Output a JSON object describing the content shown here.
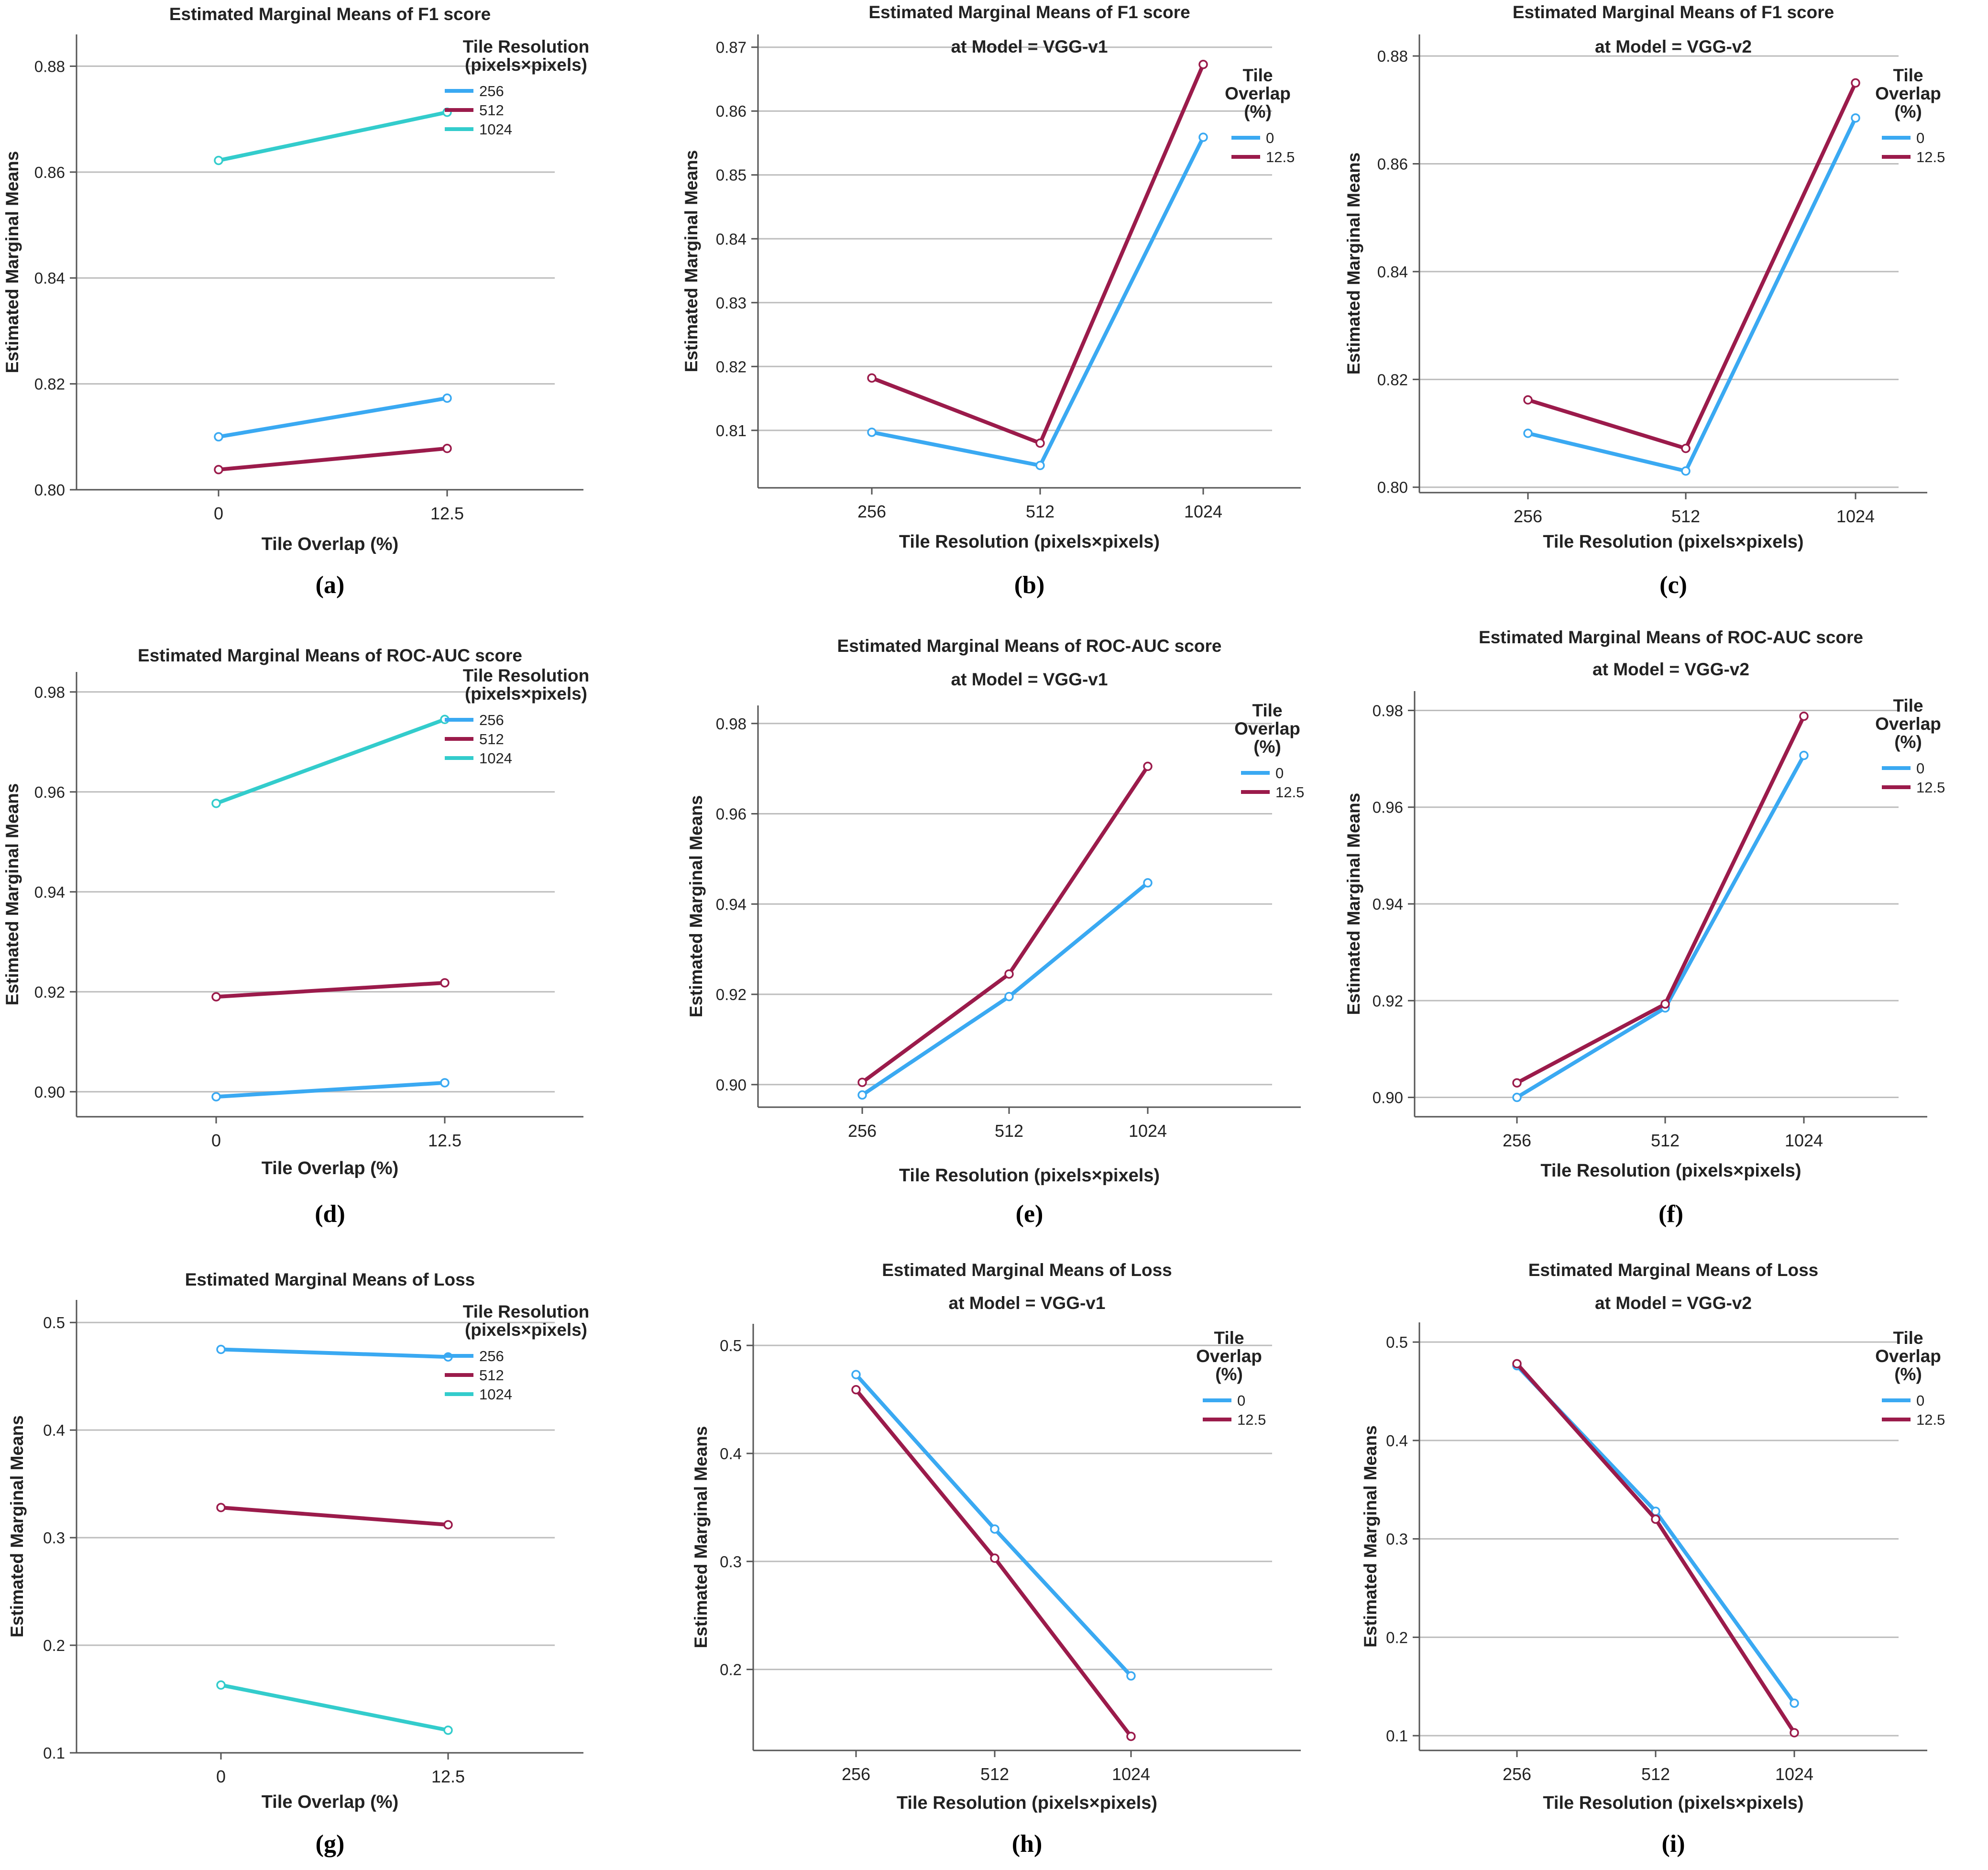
{
  "colors": {
    "blue": "#3aa9f2",
    "crimson": "#9b1b4b",
    "teal": "#33cccc",
    "grid": "#bdbdbd",
    "axis": "#555555",
    "text": "#222222"
  },
  "chart_data": [
    {
      "id": "a",
      "caption": "(a)",
      "type": "line",
      "title": [
        "Estimated Marginal Means of F1 score"
      ],
      "xlabel": "Tile Overlap (%)",
      "ylabel": "Estimated Marginal Means",
      "categories": [
        "0",
        "12.5"
      ],
      "ylim": [
        0.8,
        0.886
      ],
      "yticks": [
        0.8,
        0.82,
        0.84,
        0.86,
        0.88
      ],
      "tickfmt": 2,
      "legend_title": [
        "Tile Resolution",
        "(pixels×pixels)"
      ],
      "series": [
        {
          "name": "256",
          "color": "blue",
          "values": [
            0.81,
            0.8173
          ]
        },
        {
          "name": "512",
          "color": "crimson",
          "values": [
            0.8038,
            0.8078
          ]
        },
        {
          "name": "1024",
          "color": "teal",
          "values": [
            0.8622,
            0.8713
          ]
        }
      ]
    },
    {
      "id": "b",
      "caption": "(b)",
      "type": "line",
      "title": [
        "Estimated Marginal Means of F1 score",
        "at Model = VGG-v1"
      ],
      "xlabel": "Tile Resolution (pixels×pixels)",
      "ylabel": "Estimated Marginal Means",
      "categories": [
        "256",
        "512",
        "1024"
      ],
      "ylim": [
        0.801,
        0.872
      ],
      "yticks": [
        0.81,
        0.82,
        0.83,
        0.84,
        0.85,
        0.86,
        0.87
      ],
      "tickfmt": 2,
      "legend_title": [
        "Tile",
        "Overlap",
        "(%)"
      ],
      "series": [
        {
          "name": "0",
          "color": "blue",
          "values": [
            0.8097,
            0.8045,
            0.8559
          ]
        },
        {
          "name": "12.5",
          "color": "crimson",
          "values": [
            0.8182,
            0.808,
            0.8673
          ]
        }
      ]
    },
    {
      "id": "c",
      "caption": "(c)",
      "type": "line",
      "title": [
        "Estimated Marginal Means of F1 score",
        "at Model = VGG-v2"
      ],
      "xlabel": "Tile Resolution (pixels×pixels)",
      "ylabel": "Estimated Marginal Means",
      "categories": [
        "256",
        "512",
        "1024"
      ],
      "ylim": [
        0.799,
        0.884
      ],
      "yticks": [
        0.8,
        0.82,
        0.84,
        0.86,
        0.88
      ],
      "tickfmt": 2,
      "legend_title": [
        "Tile",
        "Overlap",
        "(%)"
      ],
      "series": [
        {
          "name": "0",
          "color": "blue",
          "values": [
            0.81,
            0.803,
            0.8685
          ]
        },
        {
          "name": "12.5",
          "color": "crimson",
          "values": [
            0.8162,
            0.8072,
            0.875
          ]
        }
      ]
    },
    {
      "id": "d",
      "caption": "(d)",
      "type": "line",
      "title": [
        "Estimated Marginal Means of ROC-AUC score"
      ],
      "xlabel": "Tile Overlap (%)",
      "ylabel": "Estimated Marginal Means",
      "categories": [
        "0",
        "12.5"
      ],
      "ylim": [
        0.895,
        0.984
      ],
      "yticks": [
        0.9,
        0.92,
        0.94,
        0.96,
        0.98
      ],
      "tickfmt": 2,
      "legend_title": [
        "Tile Resolution",
        "(pixels×pixels)"
      ],
      "series": [
        {
          "name": "256",
          "color": "blue",
          "values": [
            0.899,
            0.9018
          ]
        },
        {
          "name": "512",
          "color": "crimson",
          "values": [
            0.919,
            0.9218
          ]
        },
        {
          "name": "1024",
          "color": "teal",
          "values": [
            0.9577,
            0.9745
          ]
        }
      ]
    },
    {
      "id": "e",
      "caption": "(e)",
      "type": "line",
      "title": [
        "Estimated Marginal Means of ROC-AUC score",
        "at Model = VGG-v1"
      ],
      "xlabel": "Tile Resolution (pixels×pixels)",
      "ylabel": "Estimated Marginal Means",
      "categories": [
        "256",
        "512",
        "1024"
      ],
      "ylim": [
        0.895,
        0.984
      ],
      "yticks": [
        0.9,
        0.92,
        0.94,
        0.96,
        0.98
      ],
      "tickfmt": 2,
      "legend_title": [
        "Tile",
        "Overlap",
        "(%)"
      ],
      "series": [
        {
          "name": "0",
          "color": "blue",
          "values": [
            0.8977,
            0.9195,
            0.9447
          ]
        },
        {
          "name": "12.5",
          "color": "crimson",
          "values": [
            0.9005,
            0.9245,
            0.9705
          ]
        }
      ]
    },
    {
      "id": "f",
      "caption": "(f)",
      "type": "line",
      "title": [
        "Estimated Marginal Means of ROC-AUC score",
        "at Model = VGG-v2"
      ],
      "xlabel": "Tile Resolution (pixels×pixels)",
      "ylabel": "Estimated Marginal Means",
      "categories": [
        "256",
        "512",
        "1024"
      ],
      "ylim": [
        0.896,
        0.984
      ],
      "yticks": [
        0.9,
        0.92,
        0.94,
        0.96,
        0.98
      ],
      "tickfmt": 2,
      "legend_title": [
        "Tile",
        "Overlap",
        "(%)"
      ],
      "series": [
        {
          "name": "0",
          "color": "blue",
          "values": [
            0.9,
            0.9185,
            0.9707
          ]
        },
        {
          "name": "12.5",
          "color": "crimson",
          "values": [
            0.903,
            0.9193,
            0.9788
          ]
        }
      ]
    },
    {
      "id": "g",
      "caption": "(g)",
      "type": "line",
      "title": [
        "Estimated Marginal Means of Loss"
      ],
      "xlabel": "Tile Overlap (%)",
      "ylabel": "Estimated Marginal Means",
      "categories": [
        "0",
        "12.5"
      ],
      "ylim": [
        0.1,
        0.521
      ],
      "yticks": [
        0.1,
        0.2,
        0.3,
        0.4,
        0.5
      ],
      "tickfmt": 1,
      "legend_title": [
        "Tile Resolution",
        "(pixels×pixels)"
      ],
      "series": [
        {
          "name": "256",
          "color": "blue",
          "values": [
            0.475,
            0.468
          ]
        },
        {
          "name": "512",
          "color": "crimson",
          "values": [
            0.328,
            0.312
          ]
        },
        {
          "name": "1024",
          "color": "teal",
          "values": [
            0.163,
            0.121
          ]
        }
      ]
    },
    {
      "id": "h",
      "caption": "(h)",
      "type": "line",
      "title": [
        "Estimated Marginal Means of Loss",
        "at Model = VGG-v1"
      ],
      "xlabel": "Tile Resolution (pixels×pixels)",
      "ylabel": "Estimated Marginal Means",
      "categories": [
        "256",
        "512",
        "1024"
      ],
      "ylim": [
        0.125,
        0.52
      ],
      "yticks": [
        0.2,
        0.3,
        0.4,
        0.5
      ],
      "tickfmt": 1,
      "legend_title": [
        "Tile",
        "Overlap",
        "(%)"
      ],
      "series": [
        {
          "name": "0",
          "color": "blue",
          "values": [
            0.473,
            0.33,
            0.194
          ]
        },
        {
          "name": "12.5",
          "color": "crimson",
          "values": [
            0.459,
            0.303,
            0.138
          ]
        }
      ]
    },
    {
      "id": "i",
      "caption": "(i)",
      "type": "line",
      "title": [
        "Estimated Marginal Means of Loss",
        "at Model = VGG-v2"
      ],
      "xlabel": "Tile Resolution (pixels×pixels)",
      "ylabel": "Estimated Marginal Means",
      "categories": [
        "256",
        "512",
        "1024"
      ],
      "ylim": [
        0.085,
        0.52
      ],
      "yticks": [
        0.1,
        0.2,
        0.3,
        0.4,
        0.5
      ],
      "tickfmt": 1,
      "legend_title": [
        "Tile",
        "Overlap",
        "(%)"
      ],
      "series": [
        {
          "name": "0",
          "color": "blue",
          "values": [
            0.476,
            0.328,
            0.133
          ]
        },
        {
          "name": "12.5",
          "color": "crimson",
          "values": [
            0.478,
            0.32,
            0.103
          ]
        }
      ]
    }
  ]
}
